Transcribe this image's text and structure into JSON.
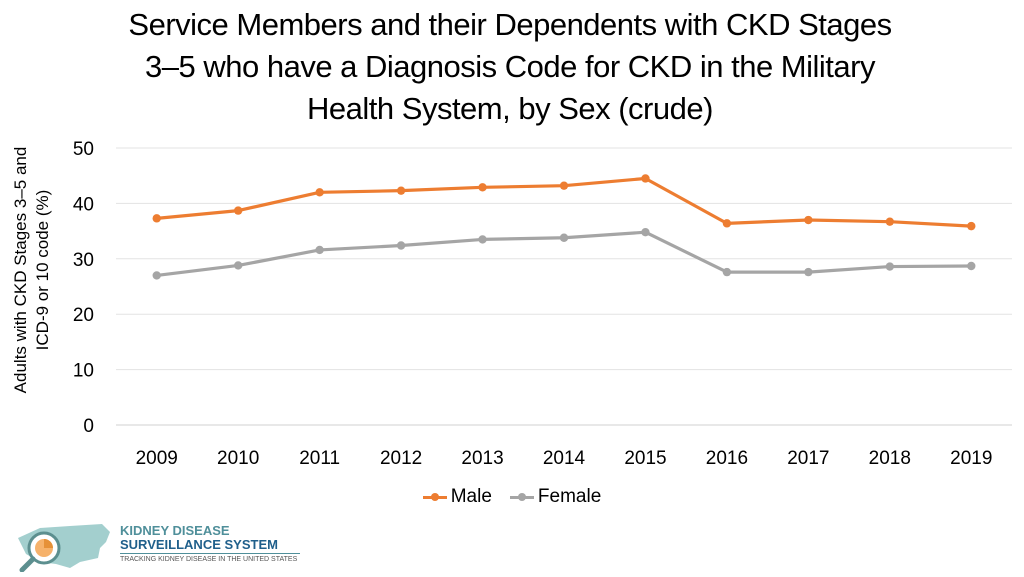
{
  "chart_data": {
    "type": "line",
    "title_lines": [
      "Service Members and their Dependents with CKD Stages",
      "3–5 who have a Diagnosis Code for CKD in the Military",
      "Health System, by Sex (crude)"
    ],
    "ylabel_lines": [
      "Adults with CKD Stages 3–5 and",
      "ICD-9 or 10 code (%)"
    ],
    "xlabel": "",
    "categories": [
      "2009",
      "2010",
      "2011",
      "2012",
      "2013",
      "2014",
      "2015",
      "2016",
      "2017",
      "2018",
      "2019"
    ],
    "ylim": [
      0,
      50
    ],
    "yticks": [
      "0",
      "10",
      "20",
      "30",
      "40",
      "50"
    ],
    "grid": true,
    "legend_position": "bottom",
    "series": [
      {
        "name": "Male",
        "color": "#ED7D31",
        "values": [
          37.3,
          38.7,
          42.0,
          42.3,
          42.9,
          43.2,
          44.5,
          36.4,
          37.0,
          36.7,
          35.9
        ]
      },
      {
        "name": "Female",
        "color": "#A5A5A5",
        "values": [
          27.0,
          28.8,
          31.6,
          32.4,
          33.5,
          33.8,
          34.8,
          27.6,
          27.6,
          28.6,
          28.7
        ]
      }
    ]
  },
  "logo": {
    "line1": "KIDNEY DISEASE",
    "line2": "SURVEILLANCE SYSTEM",
    "tagline": "TRACKING KIDNEY DISEASE IN THE UNITED STATES"
  }
}
